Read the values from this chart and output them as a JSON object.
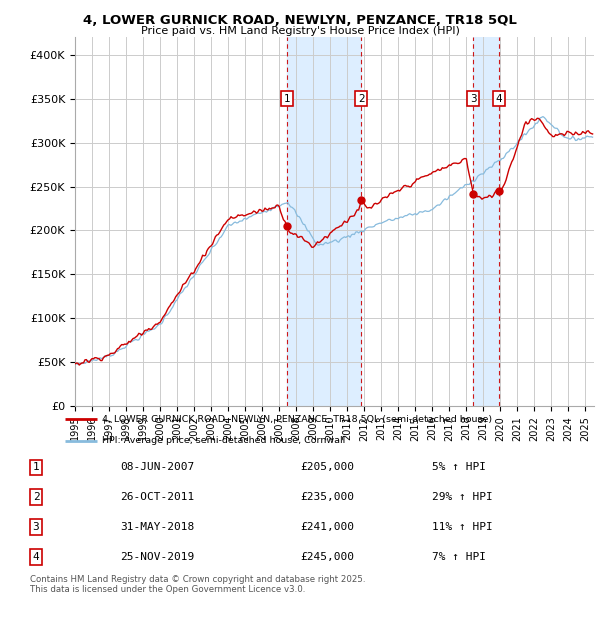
{
  "title": "4, LOWER GURNICK ROAD, NEWLYN, PENZANCE, TR18 5QL",
  "subtitle": "Price paid vs. HM Land Registry's House Price Index (HPI)",
  "ylabel_ticks": [
    "£0",
    "£50K",
    "£100K",
    "£150K",
    "£200K",
    "£250K",
    "£300K",
    "£350K",
    "£400K"
  ],
  "ytick_values": [
    0,
    50000,
    100000,
    150000,
    200000,
    250000,
    300000,
    350000,
    400000
  ],
  "ylim": [
    0,
    420000
  ],
  "xlim_start": 1995.0,
  "xlim_end": 2025.5,
  "transaction_dates": [
    2007.44,
    2011.83,
    2018.41,
    2019.9
  ],
  "transaction_prices": [
    205000,
    235000,
    241000,
    245000
  ],
  "transaction_labels": [
    "1",
    "2",
    "3",
    "4"
  ],
  "legend_property_label": "4, LOWER GURNICK ROAD, NEWLYN, PENZANCE, TR18 5QL (semi-detached house)",
  "legend_hpi_label": "HPI: Average price, semi-detached house, Cornwall",
  "table_data": [
    {
      "num": "1",
      "date": "08-JUN-2007",
      "price": "£205,000",
      "hpi": "5% ↑ HPI"
    },
    {
      "num": "2",
      "date": "26-OCT-2011",
      "price": "£235,000",
      "hpi": "29% ↑ HPI"
    },
    {
      "num": "3",
      "date": "31-MAY-2018",
      "price": "£241,000",
      "hpi": "11% ↑ HPI"
    },
    {
      "num": "4",
      "date": "25-NOV-2019",
      "price": "£245,000",
      "hpi": "7% ↑ HPI"
    }
  ],
  "footer": "Contains HM Land Registry data © Crown copyright and database right 2025.\nThis data is licensed under the Open Government Licence v3.0.",
  "property_line_color": "#cc0000",
  "hpi_line_color": "#88bbdd",
  "shade_color": "#ddeeff",
  "marker_box_color": "#cc0000",
  "dashed_line_color": "#cc0000",
  "background_color": "#ffffff",
  "grid_color": "#cccccc"
}
